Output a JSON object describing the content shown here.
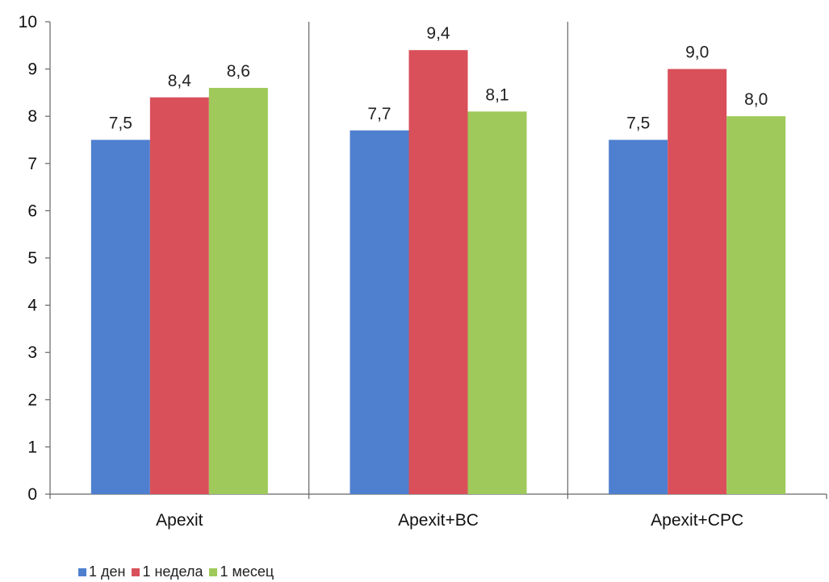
{
  "chart_data": {
    "type": "bar",
    "categories": [
      "Apexit",
      "Apexit+BC",
      "Apexit+CPC"
    ],
    "series": [
      {
        "name": "1 ден",
        "values": [
          7.5,
          7.7,
          7.5
        ],
        "labels": [
          "7,5",
          "7,7",
          "7,5"
        ],
        "color": "#4f7fcf"
      },
      {
        "name": "1 недела",
        "values": [
          8.4,
          9.4,
          9.0
        ],
        "labels": [
          "8,4",
          "9,4",
          "9,0"
        ],
        "color": "#d9505a"
      },
      {
        "name": "1 месец",
        "values": [
          8.6,
          8.1,
          8.0
        ],
        "labels": [
          "8,6",
          "8,1",
          "8,0"
        ],
        "color": "#9fc95a"
      }
    ],
    "ylim": [
      0,
      10
    ],
    "yticks": [
      0,
      1,
      2,
      3,
      4,
      5,
      6,
      7,
      8,
      9,
      10
    ],
    "xlabel": "",
    "ylabel": "",
    "title": "",
    "grid": false,
    "legend_position": "bottom-left"
  }
}
